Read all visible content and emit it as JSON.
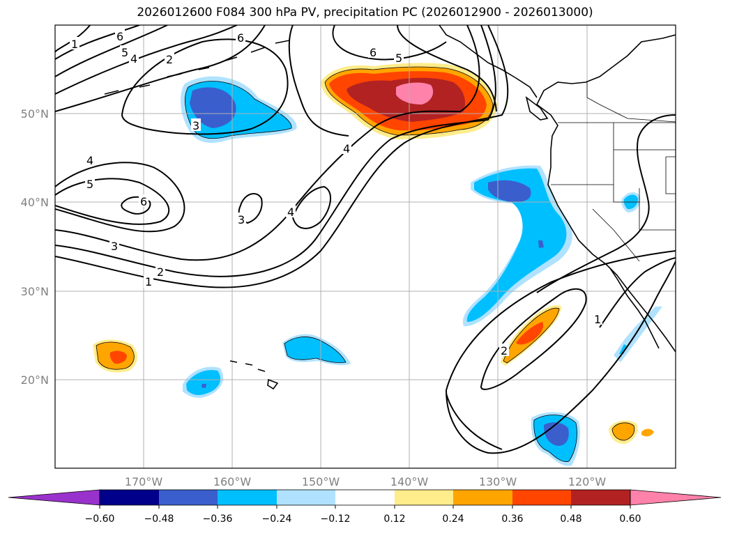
{
  "title": "2026012600 F084 300 hPa PV, precipitation PC (2026012900 - 2026013000)",
  "lon_ticks": [
    "170°W",
    "160°W",
    "150°W",
    "140°W",
    "130°W",
    "120°W"
  ],
  "lat_ticks": [
    "50°N",
    "40°N",
    "30°N",
    "20°N"
  ],
  "colorbar": {
    "levels": [
      "−0.60",
      "−0.48",
      "−0.36",
      "−0.24",
      "−0.12",
      "0.12",
      "0.24",
      "0.36",
      "0.48",
      "0.60"
    ],
    "colors": [
      "#9932cc",
      "#00008b",
      "#3a5fcd",
      "#00bfff",
      "#b0e2ff",
      "#ffffff",
      "#ffec8b",
      "#ffa500",
      "#ff4500",
      "#b22222",
      "#ff82ab"
    ]
  },
  "contour_labels": [
    "1",
    "2",
    "3",
    "4",
    "5",
    "6"
  ],
  "colors": {
    "tick_text": "#808080",
    "grid": "#b0b0b0",
    "contour": "#000000"
  }
}
